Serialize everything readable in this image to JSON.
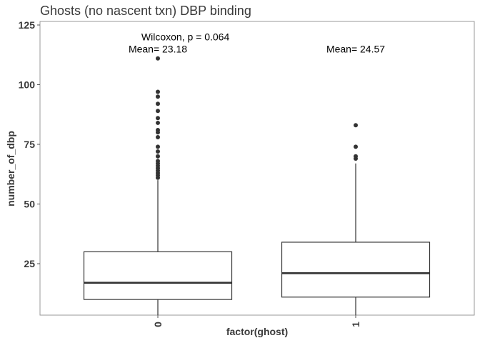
{
  "chart_data": {
    "type": "boxplot",
    "title": "Ghosts (no nascent txn) DBP binding",
    "xlabel": "factor(ghost)",
    "ylabel": "number_of_dbp",
    "ylim": [
      5,
      125
    ],
    "yticks": [
      25,
      50,
      75,
      100,
      125
    ],
    "grid": false,
    "categories": [
      "0",
      "1"
    ],
    "boxes": [
      {
        "category": "0",
        "whisker_low": 0,
        "q1": 10,
        "median": 17,
        "q3": 30,
        "whisker_high": 60,
        "outliers": [
          61,
          62,
          63,
          64,
          65,
          66,
          67,
          68,
          70,
          72,
          74,
          78,
          80,
          81,
          84,
          86,
          89,
          92,
          95,
          97,
          111
        ]
      },
      {
        "category": "1",
        "whisker_low": 0,
        "q1": 11,
        "median": 21,
        "q3": 34,
        "whisker_high": 67,
        "outliers": [
          69,
          70,
          74,
          83
        ]
      }
    ],
    "annotations": [
      {
        "text": "Wilcoxon, p = 0.064",
        "x_category": "0",
        "x_offset": 0.2,
        "y": 120
      },
      {
        "text": "Mean= 23.18",
        "x_category": "0",
        "x_offset": 0,
        "y": 115
      },
      {
        "text": "Mean= 24.57",
        "x_category": "1",
        "x_offset": 0,
        "y": 115
      }
    ],
    "colors": {
      "box_fill": "#ffffff",
      "box_stroke": "#333333",
      "outlier": "#333333",
      "panel_border": "#999999",
      "text": "#3a3a3a"
    }
  }
}
